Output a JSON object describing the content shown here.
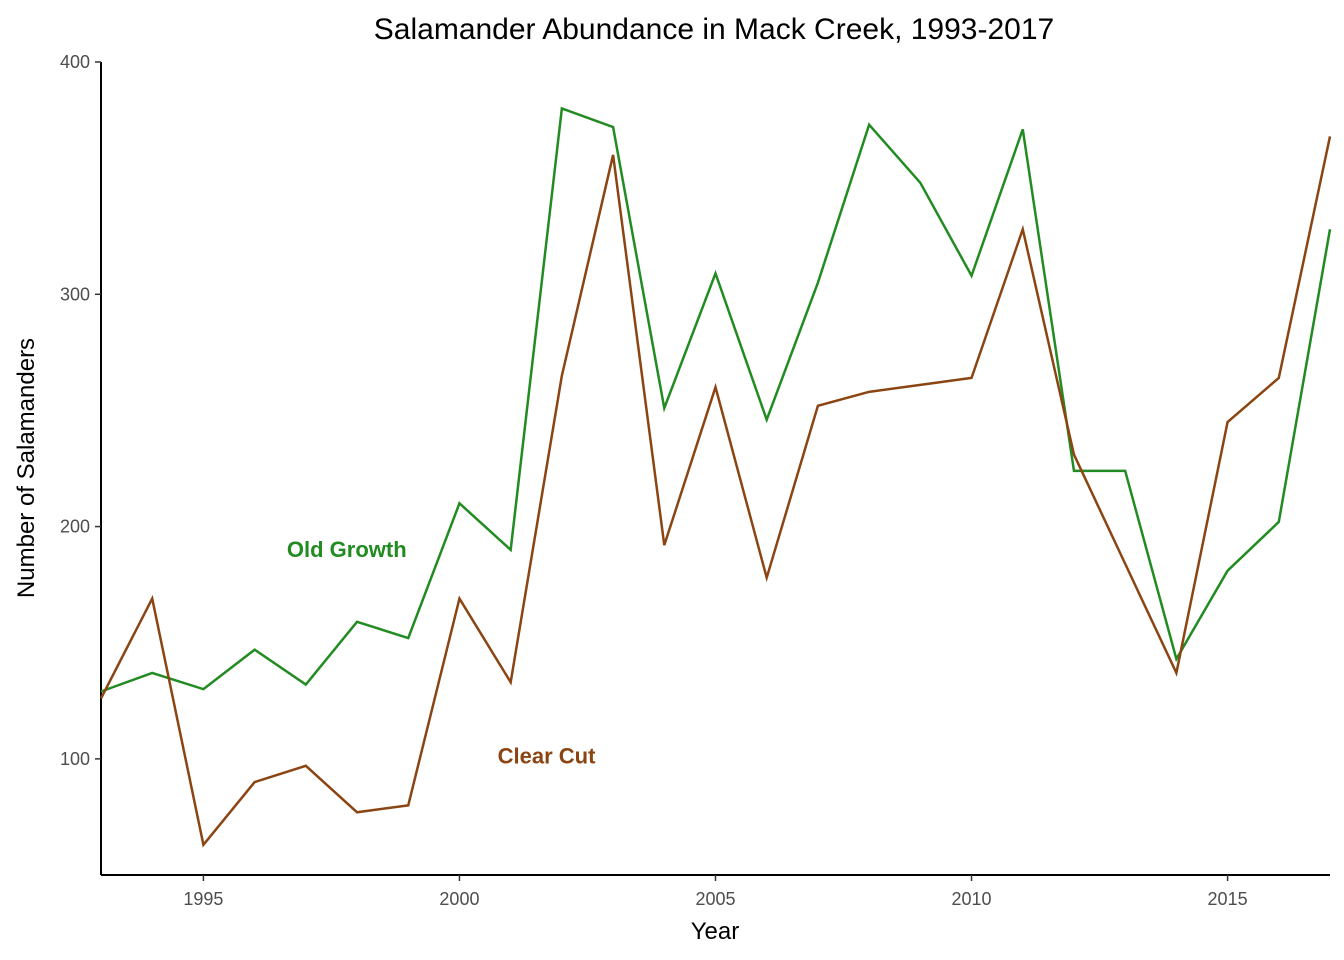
{
  "chart_data": {
    "type": "line",
    "title": "Salamander Abundance in Mack Creek, 1993-2017",
    "xlabel": "Year",
    "ylabel": "Number of Salamanders",
    "xlim": [
      1993,
      2017
    ],
    "ylim": [
      50,
      400
    ],
    "x_ticks": [
      1995,
      2000,
      2005,
      2010,
      2015
    ],
    "y_ticks": [
      100,
      200,
      300,
      400
    ],
    "grid": false,
    "legend": "none (direct labels on plot)",
    "x": [
      1993,
      1994,
      1995,
      1996,
      1997,
      1998,
      1999,
      2000,
      2001,
      2002,
      2003,
      2004,
      2005,
      2006,
      2007,
      2008,
      2009,
      2010,
      2011,
      2012,
      2013,
      2014,
      2015,
      2016,
      2017
    ],
    "series": [
      {
        "name": "Old Growth",
        "color": "#228B22",
        "label_x": 1997.8,
        "label_y": 187,
        "values": [
          129,
          137,
          130,
          147,
          132,
          159,
          152,
          210,
          190,
          380,
          372,
          251,
          309,
          246,
          305,
          373,
          348,
          308,
          371,
          224,
          224,
          143,
          181,
          202,
          328
        ]
      },
      {
        "name": "Clear Cut",
        "color": "#8B4513",
        "label_x": 2001.7,
        "label_y": 98,
        "values": [
          126,
          169,
          63,
          90,
          97,
          77,
          80,
          169,
          133,
          265,
          360,
          192,
          260,
          178,
          252,
          258,
          261,
          264,
          328,
          231,
          184,
          137,
          245,
          264,
          368
        ]
      }
    ]
  }
}
